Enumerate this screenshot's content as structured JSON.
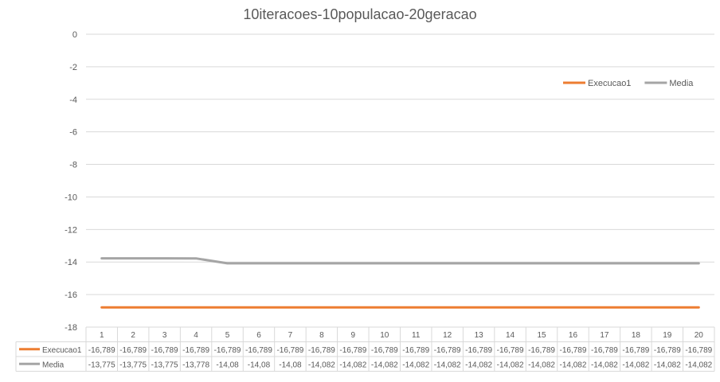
{
  "chart_data": {
    "type": "line",
    "title": "10iteracoes-10populacao-20geracao",
    "categories": [
      "1",
      "2",
      "3",
      "4",
      "5",
      "6",
      "7",
      "8",
      "9",
      "10",
      "11",
      "12",
      "13",
      "14",
      "15",
      "16",
      "17",
      "18",
      "19",
      "20"
    ],
    "ylim": [
      -18,
      0
    ],
    "yticks": [
      "0",
      "-2",
      "-4",
      "-6",
      "-8",
      "-10",
      "-12",
      "-14",
      "-16",
      "-18"
    ],
    "ytick_values": [
      0,
      -2,
      -4,
      -6,
      -8,
      -10,
      -12,
      -14,
      -16,
      -18
    ],
    "grid": true,
    "legend_position": "top-right",
    "data_table": true,
    "series": [
      {
        "name": "Execucao1",
        "color": "#ED7D31",
        "values": [
          -16.789,
          -16.789,
          -16.789,
          -16.789,
          -16.789,
          -16.789,
          -16.789,
          -16.789,
          -16.789,
          -16.789,
          -16.789,
          -16.789,
          -16.789,
          -16.789,
          -16.789,
          -16.789,
          -16.789,
          -16.789,
          -16.789,
          -16.789
        ],
        "labels": [
          "-16,789",
          "-16,789",
          "-16,789",
          "-16,789",
          "-16,789",
          "-16,789",
          "-16,789",
          "-16,789",
          "-16,789",
          "-16,789",
          "-16,789",
          "-16,789",
          "-16,789",
          "-16,789",
          "-16,789",
          "-16,789",
          "-16,789",
          "-16,789",
          "-16,789",
          "-16,789"
        ]
      },
      {
        "name": "Media",
        "color": "#A5A5A5",
        "values": [
          -13.775,
          -13.775,
          -13.775,
          -13.778,
          -14.08,
          -14.08,
          -14.08,
          -14.082,
          -14.082,
          -14.082,
          -14.082,
          -14.082,
          -14.082,
          -14.082,
          -14.082,
          -14.082,
          -14.082,
          -14.082,
          -14.082,
          -14.082
        ],
        "labels": [
          "-13,775",
          "-13,775",
          "-13,775",
          "-13,778",
          "-14,08",
          "-14,08",
          "-14,08",
          "-14,082",
          "-14,082",
          "-14,082",
          "-14,082",
          "-14,082",
          "-14,082",
          "-14,082",
          "-14,082",
          "-14,082",
          "-14,082",
          "-14,082",
          "-14,082",
          "-14,082"
        ]
      }
    ]
  }
}
